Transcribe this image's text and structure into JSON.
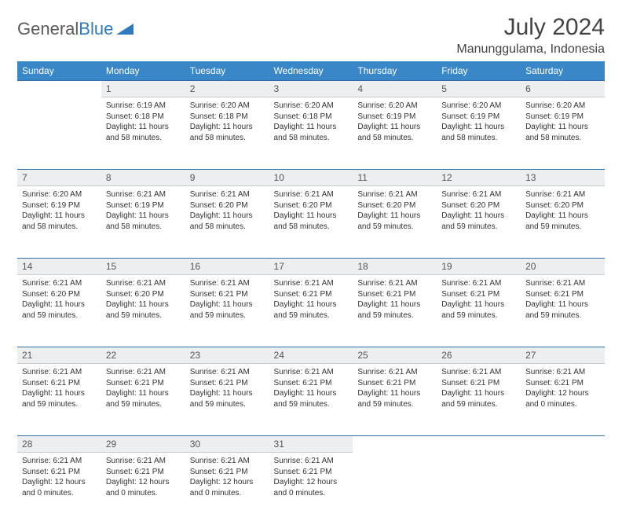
{
  "logo": {
    "text1": "General",
    "text2": "Blue"
  },
  "title": "July 2024",
  "location": "Manunggulama, Indonesia",
  "colors": {
    "header_bg": "#3a87c8",
    "header_text": "#ffffff",
    "daynum_bg": "#eceeef",
    "rule": "#2f6ea8",
    "body_text": "#333333"
  },
  "weekdays": [
    "Sunday",
    "Monday",
    "Tuesday",
    "Wednesday",
    "Thursday",
    "Friday",
    "Saturday"
  ],
  "weeks": [
    {
      "nums": [
        "",
        "1",
        "2",
        "3",
        "4",
        "5",
        "6"
      ],
      "cells": [
        null,
        {
          "sunrise": "6:19 AM",
          "sunset": "6:18 PM",
          "daylight": "11 hours and 58 minutes."
        },
        {
          "sunrise": "6:20 AM",
          "sunset": "6:18 PM",
          "daylight": "11 hours and 58 minutes."
        },
        {
          "sunrise": "6:20 AM",
          "sunset": "6:18 PM",
          "daylight": "11 hours and 58 minutes."
        },
        {
          "sunrise": "6:20 AM",
          "sunset": "6:19 PM",
          "daylight": "11 hours and 58 minutes."
        },
        {
          "sunrise": "6:20 AM",
          "sunset": "6:19 PM",
          "daylight": "11 hours and 58 minutes."
        },
        {
          "sunrise": "6:20 AM",
          "sunset": "6:19 PM",
          "daylight": "11 hours and 58 minutes."
        }
      ]
    },
    {
      "nums": [
        "7",
        "8",
        "9",
        "10",
        "11",
        "12",
        "13"
      ],
      "cells": [
        {
          "sunrise": "6:20 AM",
          "sunset": "6:19 PM",
          "daylight": "11 hours and 58 minutes."
        },
        {
          "sunrise": "6:21 AM",
          "sunset": "6:19 PM",
          "daylight": "11 hours and 58 minutes."
        },
        {
          "sunrise": "6:21 AM",
          "sunset": "6:20 PM",
          "daylight": "11 hours and 58 minutes."
        },
        {
          "sunrise": "6:21 AM",
          "sunset": "6:20 PM",
          "daylight": "11 hours and 58 minutes."
        },
        {
          "sunrise": "6:21 AM",
          "sunset": "6:20 PM",
          "daylight": "11 hours and 59 minutes."
        },
        {
          "sunrise": "6:21 AM",
          "sunset": "6:20 PM",
          "daylight": "11 hours and 59 minutes."
        },
        {
          "sunrise": "6:21 AM",
          "sunset": "6:20 PM",
          "daylight": "11 hours and 59 minutes."
        }
      ]
    },
    {
      "nums": [
        "14",
        "15",
        "16",
        "17",
        "18",
        "19",
        "20"
      ],
      "cells": [
        {
          "sunrise": "6:21 AM",
          "sunset": "6:20 PM",
          "daylight": "11 hours and 59 minutes."
        },
        {
          "sunrise": "6:21 AM",
          "sunset": "6:20 PM",
          "daylight": "11 hours and 59 minutes."
        },
        {
          "sunrise": "6:21 AM",
          "sunset": "6:21 PM",
          "daylight": "11 hours and 59 minutes."
        },
        {
          "sunrise": "6:21 AM",
          "sunset": "6:21 PM",
          "daylight": "11 hours and 59 minutes."
        },
        {
          "sunrise": "6:21 AM",
          "sunset": "6:21 PM",
          "daylight": "11 hours and 59 minutes."
        },
        {
          "sunrise": "6:21 AM",
          "sunset": "6:21 PM",
          "daylight": "11 hours and 59 minutes."
        },
        {
          "sunrise": "6:21 AM",
          "sunset": "6:21 PM",
          "daylight": "11 hours and 59 minutes."
        }
      ]
    },
    {
      "nums": [
        "21",
        "22",
        "23",
        "24",
        "25",
        "26",
        "27"
      ],
      "cells": [
        {
          "sunrise": "6:21 AM",
          "sunset": "6:21 PM",
          "daylight": "11 hours and 59 minutes."
        },
        {
          "sunrise": "6:21 AM",
          "sunset": "6:21 PM",
          "daylight": "11 hours and 59 minutes."
        },
        {
          "sunrise": "6:21 AM",
          "sunset": "6:21 PM",
          "daylight": "11 hours and 59 minutes."
        },
        {
          "sunrise": "6:21 AM",
          "sunset": "6:21 PM",
          "daylight": "11 hours and 59 minutes."
        },
        {
          "sunrise": "6:21 AM",
          "sunset": "6:21 PM",
          "daylight": "11 hours and 59 minutes."
        },
        {
          "sunrise": "6:21 AM",
          "sunset": "6:21 PM",
          "daylight": "11 hours and 59 minutes."
        },
        {
          "sunrise": "6:21 AM",
          "sunset": "6:21 PM",
          "daylight": "12 hours and 0 minutes."
        }
      ]
    },
    {
      "nums": [
        "28",
        "29",
        "30",
        "31",
        "",
        "",
        ""
      ],
      "cells": [
        {
          "sunrise": "6:21 AM",
          "sunset": "6:21 PM",
          "daylight": "12 hours and 0 minutes."
        },
        {
          "sunrise": "6:21 AM",
          "sunset": "6:21 PM",
          "daylight": "12 hours and 0 minutes."
        },
        {
          "sunrise": "6:21 AM",
          "sunset": "6:21 PM",
          "daylight": "12 hours and 0 minutes."
        },
        {
          "sunrise": "6:21 AM",
          "sunset": "6:21 PM",
          "daylight": "12 hours and 0 minutes."
        },
        null,
        null,
        null
      ]
    }
  ],
  "labels": {
    "sunrise": "Sunrise:",
    "sunset": "Sunset:",
    "daylight": "Daylight:"
  }
}
